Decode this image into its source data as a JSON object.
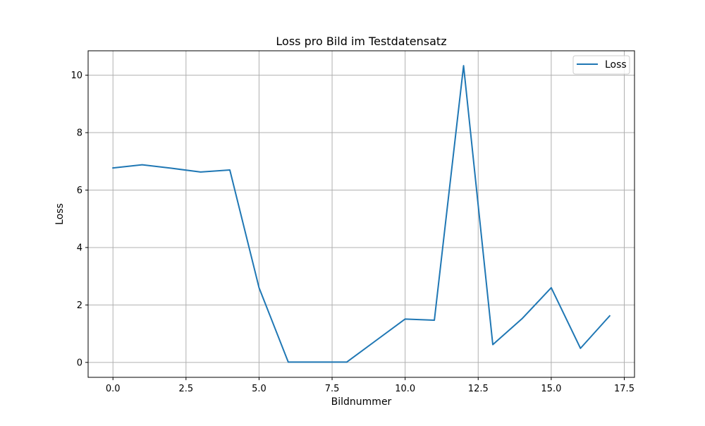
{
  "chart_data": {
    "type": "line",
    "title": "Loss pro Bild im Testdatensatz",
    "xlabel": "Bildnummer",
    "ylabel": "Loss",
    "xlim": [
      -0.85,
      17.85
    ],
    "ylim": [
      -0.52,
      10.85
    ],
    "xticks": [
      0.0,
      2.5,
      5.0,
      7.5,
      10.0,
      12.5,
      15.0,
      17.5
    ],
    "xtick_labels": [
      "0.0",
      "2.5",
      "5.0",
      "7.5",
      "10.0",
      "12.5",
      "15.0",
      "17.5"
    ],
    "yticks": [
      0,
      2,
      4,
      6,
      8,
      10
    ],
    "ytick_labels": [
      "0",
      "2",
      "4",
      "6",
      "8",
      "10"
    ],
    "grid": true,
    "legend_position": "top-right",
    "series": [
      {
        "name": "Loss",
        "color": "#1f77b4",
        "x": [
          0,
          1,
          2,
          3,
          4,
          5,
          6,
          7,
          8,
          9,
          10,
          11,
          12,
          13,
          14,
          15,
          16,
          17
        ],
        "y": [
          6.77,
          6.88,
          6.76,
          6.63,
          6.7,
          2.6,
          0.01,
          0.01,
          0.01,
          0.76,
          1.51,
          1.47,
          10.33,
          0.62,
          1.52,
          2.6,
          0.49,
          1.62
        ]
      }
    ]
  }
}
